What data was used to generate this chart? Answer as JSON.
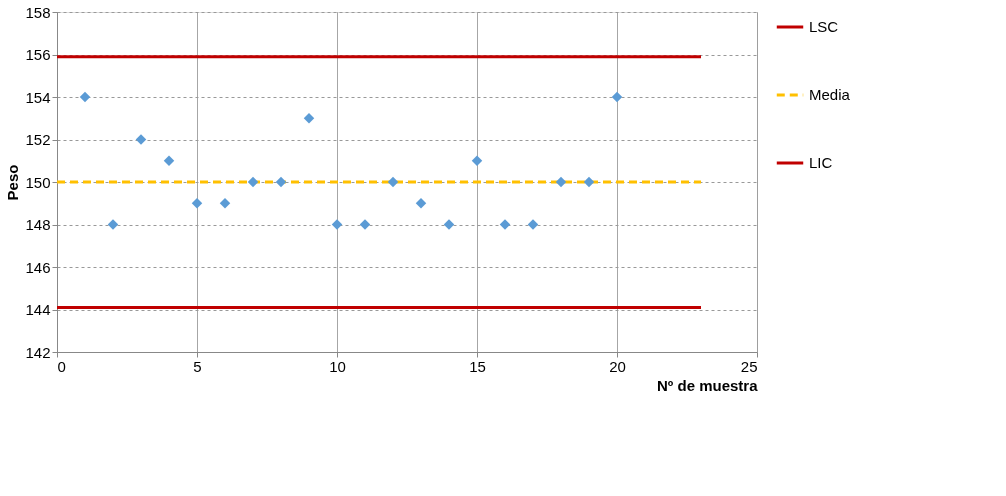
{
  "chart_data": {
    "type": "scatter",
    "xlabel": "Nº de muestra",
    "ylabel": "Peso",
    "xlim": [
      0,
      25
    ],
    "xticks": [
      0,
      5,
      10,
      15,
      20,
      25
    ],
    "ylim": [
      142,
      158
    ],
    "yticks": [
      142,
      144,
      146,
      148,
      150,
      152,
      154,
      156,
      158
    ],
    "grid": true,
    "legend": "right",
    "series": [
      {
        "marker": "diamond",
        "color": "#5b9bd5",
        "x": [
          1,
          2,
          3,
          4,
          5,
          6,
          7,
          8,
          9,
          10,
          11,
          12,
          13,
          14,
          15,
          16,
          17,
          18,
          19,
          20
        ],
        "values": [
          154,
          148,
          152,
          151,
          149,
          149,
          150,
          150,
          153,
          148,
          148,
          150,
          149,
          148,
          151,
          148,
          148,
          150,
          150,
          154
        ]
      },
      {
        "type": "line",
        "name": "LSC",
        "color": "#c00000",
        "line_style": "solid",
        "x": [
          0,
          23
        ],
        "values": [
          155.9,
          155.9
        ]
      },
      {
        "type": "line",
        "name": "Media",
        "color": "#ffc000",
        "line_style": "dashed",
        "x": [
          0,
          23
        ],
        "values": [
          150,
          150
        ]
      },
      {
        "type": "line",
        "name": "LIC",
        "color": "#c00000",
        "line_style": "solid",
        "x": [
          0,
          23
        ],
        "values": [
          144.1,
          144.1
        ]
      }
    ]
  }
}
